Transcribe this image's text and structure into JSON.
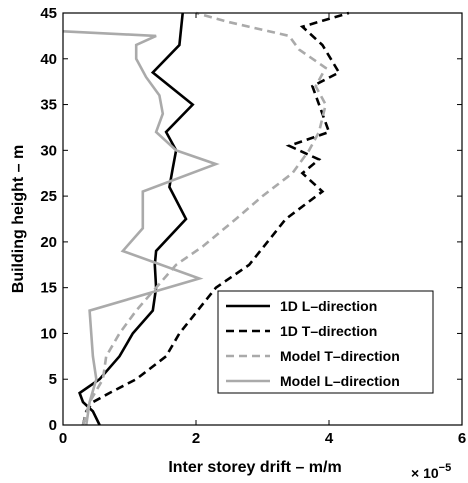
{
  "chart_data": {
    "type": "line",
    "xlabel": "Inter storey drift – m/m",
    "ylabel": "Building height – m",
    "x_multiplier_base": "× 10",
    "x_multiplier_exp": "−5",
    "xlim": [
      0,
      6
    ],
    "ylim": [
      0,
      45
    ],
    "xticks": [
      "0",
      "2",
      "4",
      "6"
    ],
    "yticks": [
      "0",
      "5",
      "10",
      "15",
      "20",
      "25",
      "30",
      "35",
      "40",
      "45"
    ],
    "xtick_values": [
      0,
      2,
      4,
      6
    ],
    "ytick_values": [
      0,
      5,
      10,
      15,
      20,
      25,
      30,
      35,
      40,
      45
    ],
    "grid": false,
    "legend_position": "bottom-right",
    "series": [
      {
        "name": "1D L–direction",
        "color": "#000000",
        "dash": "solid",
        "x": [
          0.55,
          0.45,
          0.3,
          0.25,
          0.55,
          0.85,
          1.05,
          1.35,
          1.4,
          1.38,
          1.4,
          1.85,
          1.6,
          1.65,
          1.7,
          1.55,
          1.95,
          1.35,
          1.75,
          1.8
        ],
        "y": [
          0,
          1.5,
          2.5,
          3.5,
          5,
          7.5,
          10,
          12.5,
          15,
          17.5,
          19,
          22.5,
          26,
          28,
          30,
          32,
          35,
          38.5,
          41.5,
          45
        ]
      },
      {
        "name": "1D T–direction",
        "color": "#000000",
        "dash": "dashed",
        "x": [
          0.3,
          0.35,
          0.45,
          0.7,
          1.1,
          1.55,
          1.75,
          2.3,
          2.8,
          3.35,
          3.9,
          3.6,
          3.85,
          3.4,
          4.0,
          3.75,
          4.15,
          3.9,
          3.6,
          4.3
        ],
        "y": [
          0,
          1.5,
          2.5,
          3.5,
          5,
          7.5,
          10,
          15,
          17.5,
          22.5,
          25.5,
          27.5,
          29,
          30.5,
          32,
          37,
          38.5,
          41.5,
          43.5,
          45
        ]
      },
      {
        "name": "Model T–direction",
        "color": "#aaaaaa",
        "dash": "dashed",
        "x": [
          0.3,
          0.4,
          0.6,
          0.65,
          0.85,
          1.1,
          1.4,
          1.7,
          2.1,
          2.6,
          3.0,
          3.45,
          3.7,
          3.85,
          3.95,
          3.8,
          3.95,
          3.55,
          3.4,
          2.5,
          2.0
        ],
        "y": [
          0,
          2.5,
          5,
          7.5,
          10,
          12.5,
          15,
          17.5,
          19.5,
          22.5,
          25,
          27.5,
          30,
          32,
          35,
          37,
          39,
          41,
          42.5,
          44,
          45
        ]
      },
      {
        "name": "Model L–direction",
        "color": "#aaaaaa",
        "dash": "solid",
        "x": [
          0.35,
          0.4,
          0.5,
          0.45,
          0.4,
          2.05,
          0.9,
          1.2,
          1.2,
          2.3,
          1.7,
          1.4,
          1.5,
          1.45,
          1.25,
          1.1,
          1.1,
          1.4,
          0.0
        ],
        "y": [
          0,
          2.5,
          5,
          7.5,
          12.5,
          16,
          19,
          21.5,
          25.5,
          28.5,
          30,
          32,
          34,
          36,
          38,
          40,
          41.5,
          42.5,
          43
        ]
      }
    ]
  }
}
